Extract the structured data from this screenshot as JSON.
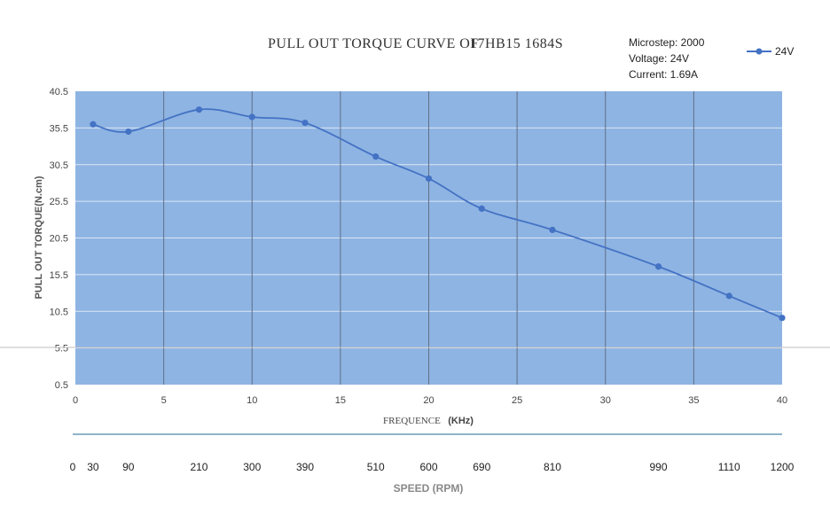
{
  "chart_data": {
    "type": "line",
    "title": "PULL OUT TORQUE CURVE OF",
    "title_model": "17HB15 1684S",
    "info": [
      "Microstep: 2000",
      "Voltage: 24V",
      "Current: 1.69A"
    ],
    "ylabel": "PULL OUT TORQUE(N.cm)",
    "xlabel": "FREQUENCE",
    "xlabel_unit": "(KHz)",
    "xlim": [
      0,
      40
    ],
    "ylim": [
      0.5,
      40.5
    ],
    "y_ticks": [
      "40.5",
      "35.5",
      "30.5",
      "25.5",
      "20.5",
      "15.5",
      "10.5",
      "5.5",
      "0.5"
    ],
    "x_ticks": [
      "0",
      "5",
      "10",
      "15",
      "20",
      "25",
      "30",
      "35",
      "40"
    ],
    "series": [
      {
        "name": "24V",
        "color": "#4472c4",
        "x": [
          1,
          3,
          7,
          10,
          13,
          17,
          20,
          23,
          27,
          33,
          37,
          40
        ],
        "y": [
          36.0,
          35.0,
          38.0,
          37.0,
          36.2,
          31.6,
          28.6,
          24.5,
          21.6,
          16.6,
          12.6,
          9.6
        ]
      }
    ],
    "grid": true,
    "legend": "top-right",
    "plot_bg": "#8eb4e3",
    "speed_axis": {
      "label": "SPEED (RPM)",
      "ticks": [
        {
          "x": 0,
          "label": "0"
        },
        {
          "x": 1,
          "label": "30"
        },
        {
          "x": 3,
          "label": "90"
        },
        {
          "x": 7,
          "label": "210"
        },
        {
          "x": 10,
          "label": "300"
        },
        {
          "x": 13,
          "label": "390"
        },
        {
          "x": 17,
          "label": "510"
        },
        {
          "x": 20,
          "label": "600"
        },
        {
          "x": 23,
          "label": "690"
        },
        {
          "x": 27,
          "label": "810"
        },
        {
          "x": 33,
          "label": "990"
        },
        {
          "x": 37,
          "label": "1110"
        },
        {
          "x": 40,
          "label": "1200"
        }
      ]
    }
  }
}
